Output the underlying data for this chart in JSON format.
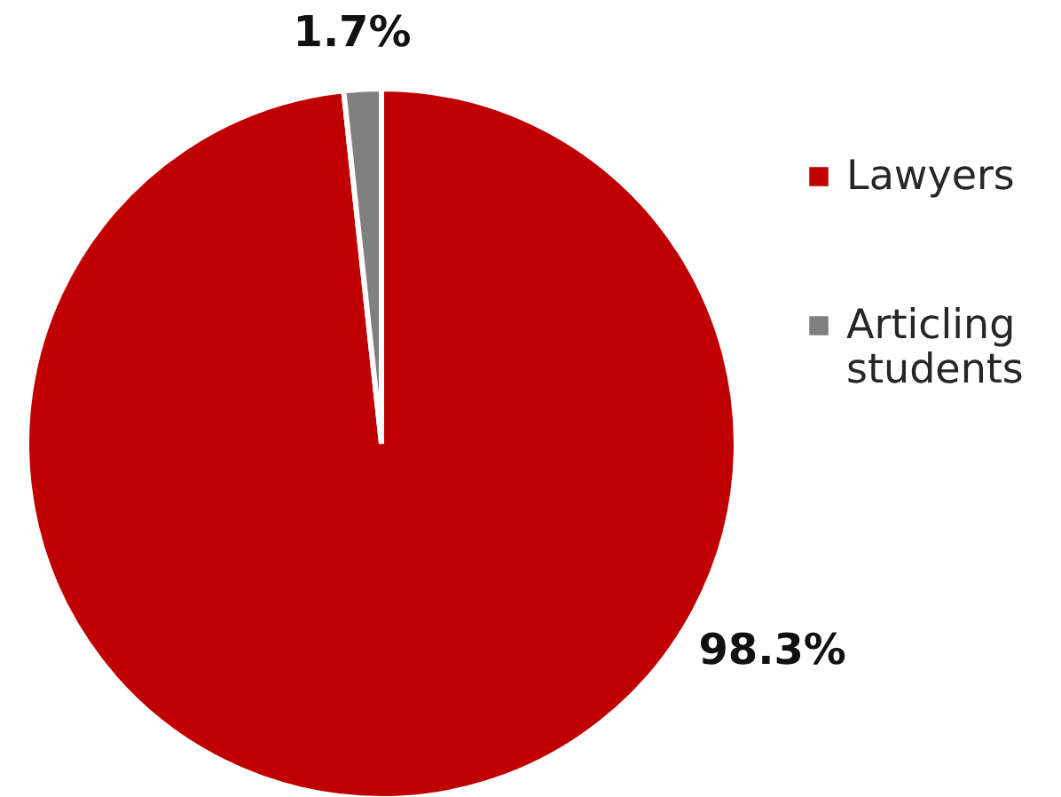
{
  "chart_data": {
    "type": "pie",
    "categories": [
      "Lawyers",
      "Articling students"
    ],
    "values": [
      98.3,
      1.7
    ],
    "colors": [
      "#c00000",
      "#808080"
    ],
    "value_labels": [
      "98.3%",
      "1.7%"
    ],
    "legend": "right"
  }
}
